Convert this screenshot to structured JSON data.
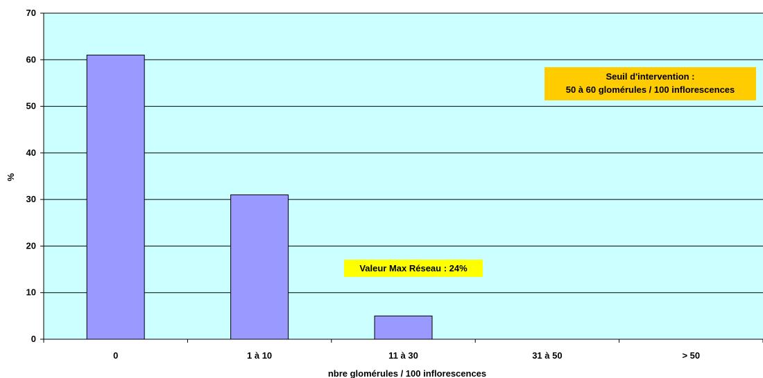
{
  "chart_data": {
    "type": "bar",
    "categories": [
      "0",
      "1 à 10",
      "11 à 30",
      "31 à 50",
      "> 50"
    ],
    "values": [
      61,
      31,
      5,
      0,
      0
    ],
    "title": "",
    "xlabel": "nbre glomérules / 100 inflorescences",
    "ylabel": "%",
    "ylim": [
      0,
      70
    ],
    "yticks": [
      0,
      10,
      20,
      30,
      40,
      50,
      60,
      70
    ],
    "grid": true,
    "legend": "none",
    "colors": {
      "plot_background": "#ccffff",
      "bar_fill": "#9999ff",
      "bar_stroke": "#000000",
      "gridline": "#000000"
    },
    "annotations": [
      {
        "lines": [
          "Seuil d'intervention :",
          "50 à 60 glomérules / 100 inflorescences"
        ],
        "background": "#ffcc00"
      },
      {
        "lines": [
          "Valeur Max Réseau : 24%"
        ],
        "background": "#ffff00"
      }
    ]
  }
}
